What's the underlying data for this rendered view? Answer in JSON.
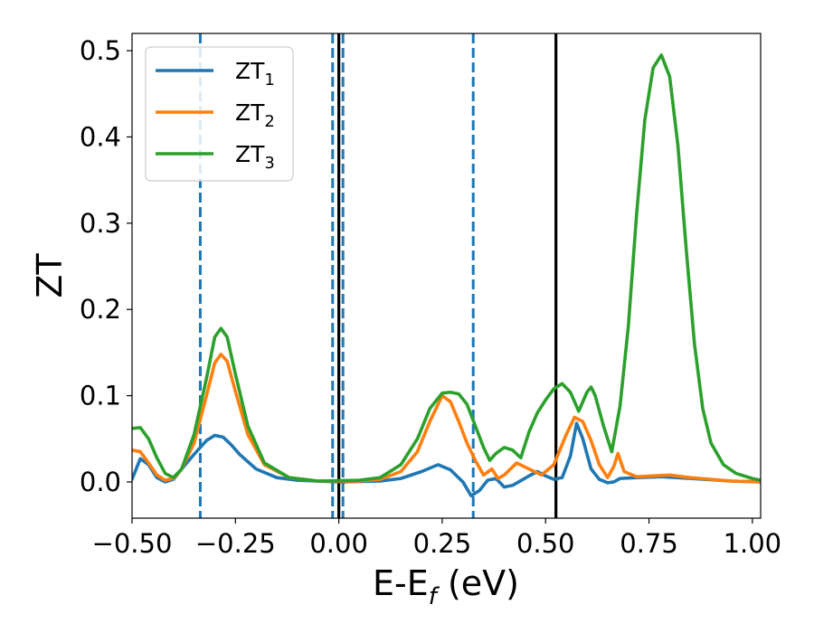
{
  "chart_data": {
    "type": "line",
    "xlabel": {
      "base": "E-E",
      "subscript": "f",
      "suffix": " (eV)"
    },
    "ylabel": "ZT",
    "xlim": [
      -0.5,
      1.02
    ],
    "ylim": [
      -0.042,
      0.52
    ],
    "xticks": [
      -0.5,
      -0.25,
      0.0,
      0.25,
      0.5,
      0.75,
      1.0
    ],
    "xtick_labels": [
      "−0.50",
      "−0.25",
      "0.00",
      "0.25",
      "0.50",
      "0.75",
      "1.00"
    ],
    "yticks": [
      0.0,
      0.1,
      0.2,
      0.3,
      0.4,
      0.5
    ],
    "ytick_labels": [
      "0.0",
      "0.1",
      "0.2",
      "0.3",
      "0.4",
      "0.5"
    ],
    "grid": false,
    "legend_position": "top-left",
    "vlines": [
      {
        "x": -0.335,
        "style": "dashed",
        "color": "#1f77b4"
      },
      {
        "x": -0.015,
        "style": "dashed",
        "color": "#1f77b4"
      },
      {
        "x": 0.01,
        "style": "dashed",
        "color": "#1f77b4"
      },
      {
        "x": 0.325,
        "style": "dashed",
        "color": "#1f77b4"
      },
      {
        "x": 0.0,
        "style": "solid",
        "color": "#000000"
      },
      {
        "x": 0.525,
        "style": "solid",
        "color": "#000000"
      }
    ],
    "series": [
      {
        "name": "ZT1",
        "label_base": "ZT",
        "label_sub": "1",
        "color": "#1f77b4",
        "points": [
          [
            -0.5,
            0.003
          ],
          [
            -0.48,
            0.027
          ],
          [
            -0.46,
            0.02
          ],
          [
            -0.44,
            0.005
          ],
          [
            -0.42,
            0.0
          ],
          [
            -0.4,
            0.003
          ],
          [
            -0.38,
            0.015
          ],
          [
            -0.35,
            0.032
          ],
          [
            -0.32,
            0.048
          ],
          [
            -0.3,
            0.054
          ],
          [
            -0.28,
            0.052
          ],
          [
            -0.26,
            0.043
          ],
          [
            -0.24,
            0.032
          ],
          [
            -0.2,
            0.015
          ],
          [
            -0.15,
            0.005
          ],
          [
            -0.1,
            0.002
          ],
          [
            0.0,
            0.0
          ],
          [
            0.1,
            0.001
          ],
          [
            0.15,
            0.004
          ],
          [
            0.2,
            0.012
          ],
          [
            0.24,
            0.02
          ],
          [
            0.27,
            0.014
          ],
          [
            0.3,
            0.0
          ],
          [
            0.32,
            -0.016
          ],
          [
            0.34,
            -0.01
          ],
          [
            0.36,
            0.002
          ],
          [
            0.38,
            0.004
          ],
          [
            0.4,
            -0.006
          ],
          [
            0.42,
            -0.004
          ],
          [
            0.46,
            0.007
          ],
          [
            0.48,
            0.012
          ],
          [
            0.5,
            0.007
          ],
          [
            0.52,
            0.003
          ],
          [
            0.54,
            0.005
          ],
          [
            0.56,
            0.03
          ],
          [
            0.575,
            0.068
          ],
          [
            0.59,
            0.05
          ],
          [
            0.61,
            0.015
          ],
          [
            0.63,
            0.003
          ],
          [
            0.65,
            -0.001
          ],
          [
            0.665,
            0.0
          ],
          [
            0.68,
            0.004
          ],
          [
            0.72,
            0.005
          ],
          [
            0.78,
            0.006
          ],
          [
            0.85,
            0.004
          ],
          [
            0.95,
            0.001
          ],
          [
            1.02,
            0.0
          ]
        ]
      },
      {
        "name": "ZT2",
        "label_base": "ZT",
        "label_sub": "2",
        "color": "#ff7f0e",
        "points": [
          [
            -0.5,
            0.037
          ],
          [
            -0.48,
            0.035
          ],
          [
            -0.46,
            0.022
          ],
          [
            -0.44,
            0.008
          ],
          [
            -0.42,
            0.002
          ],
          [
            -0.4,
            0.004
          ],
          [
            -0.38,
            0.015
          ],
          [
            -0.35,
            0.045
          ],
          [
            -0.32,
            0.1
          ],
          [
            -0.3,
            0.138
          ],
          [
            -0.285,
            0.148
          ],
          [
            -0.27,
            0.14
          ],
          [
            -0.25,
            0.105
          ],
          [
            -0.22,
            0.055
          ],
          [
            -0.18,
            0.02
          ],
          [
            -0.12,
            0.005
          ],
          [
            -0.05,
            0.001
          ],
          [
            0.05,
            0.001
          ],
          [
            0.1,
            0.003
          ],
          [
            0.15,
            0.012
          ],
          [
            0.19,
            0.035
          ],
          [
            0.22,
            0.07
          ],
          [
            0.25,
            0.1
          ],
          [
            0.27,
            0.093
          ],
          [
            0.29,
            0.07
          ],
          [
            0.31,
            0.045
          ],
          [
            0.33,
            0.025
          ],
          [
            0.35,
            0.008
          ],
          [
            0.37,
            0.015
          ],
          [
            0.385,
            0.004
          ],
          [
            0.4,
            0.008
          ],
          [
            0.43,
            0.022
          ],
          [
            0.46,
            0.015
          ],
          [
            0.49,
            0.008
          ],
          [
            0.52,
            0.02
          ],
          [
            0.55,
            0.055
          ],
          [
            0.57,
            0.075
          ],
          [
            0.59,
            0.07
          ],
          [
            0.61,
            0.048
          ],
          [
            0.63,
            0.02
          ],
          [
            0.65,
            0.005
          ],
          [
            0.665,
            0.018
          ],
          [
            0.675,
            0.033
          ],
          [
            0.69,
            0.012
          ],
          [
            0.72,
            0.006
          ],
          [
            0.8,
            0.008
          ],
          [
            0.85,
            0.005
          ],
          [
            0.95,
            0.001
          ],
          [
            1.02,
            0.0
          ]
        ]
      },
      {
        "name": "ZT3",
        "label_base": "ZT",
        "label_sub": "3",
        "color": "#2ca02c",
        "points": [
          [
            -0.5,
            0.062
          ],
          [
            -0.48,
            0.063
          ],
          [
            -0.46,
            0.05
          ],
          [
            -0.44,
            0.028
          ],
          [
            -0.42,
            0.01
          ],
          [
            -0.4,
            0.005
          ],
          [
            -0.38,
            0.015
          ],
          [
            -0.35,
            0.055
          ],
          [
            -0.32,
            0.12
          ],
          [
            -0.3,
            0.168
          ],
          [
            -0.285,
            0.178
          ],
          [
            -0.27,
            0.168
          ],
          [
            -0.25,
            0.125
          ],
          [
            -0.22,
            0.065
          ],
          [
            -0.18,
            0.022
          ],
          [
            -0.12,
            0.005
          ],
          [
            -0.05,
            0.001
          ],
          [
            0.05,
            0.002
          ],
          [
            0.1,
            0.005
          ],
          [
            0.15,
            0.02
          ],
          [
            0.19,
            0.05
          ],
          [
            0.22,
            0.085
          ],
          [
            0.25,
            0.103
          ],
          [
            0.27,
            0.104
          ],
          [
            0.29,
            0.102
          ],
          [
            0.31,
            0.09
          ],
          [
            0.33,
            0.065
          ],
          [
            0.35,
            0.04
          ],
          [
            0.365,
            0.025
          ],
          [
            0.38,
            0.033
          ],
          [
            0.4,
            0.04
          ],
          [
            0.42,
            0.037
          ],
          [
            0.44,
            0.028
          ],
          [
            0.46,
            0.058
          ],
          [
            0.48,
            0.08
          ],
          [
            0.5,
            0.095
          ],
          [
            0.52,
            0.108
          ],
          [
            0.54,
            0.114
          ],
          [
            0.56,
            0.104
          ],
          [
            0.58,
            0.082
          ],
          [
            0.6,
            0.104
          ],
          [
            0.61,
            0.11
          ],
          [
            0.62,
            0.1
          ],
          [
            0.64,
            0.065
          ],
          [
            0.66,
            0.035
          ],
          [
            0.68,
            0.088
          ],
          [
            0.7,
            0.18
          ],
          [
            0.72,
            0.31
          ],
          [
            0.74,
            0.42
          ],
          [
            0.76,
            0.48
          ],
          [
            0.78,
            0.495
          ],
          [
            0.8,
            0.47
          ],
          [
            0.82,
            0.39
          ],
          [
            0.84,
            0.27
          ],
          [
            0.86,
            0.16
          ],
          [
            0.88,
            0.085
          ],
          [
            0.9,
            0.045
          ],
          [
            0.93,
            0.02
          ],
          [
            0.96,
            0.01
          ],
          [
            1.0,
            0.004
          ],
          [
            1.02,
            0.002
          ]
        ]
      }
    ]
  }
}
